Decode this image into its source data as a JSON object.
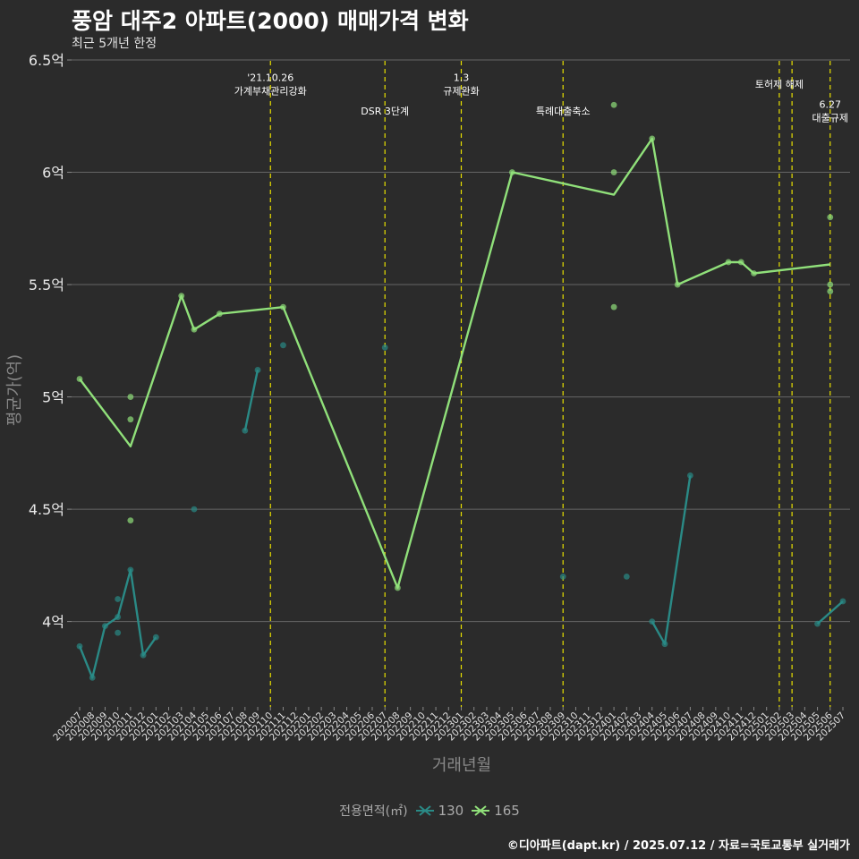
{
  "title": "풍암 대주2 아파트(2000) 매매가격 변화",
  "subtitle": "최근 5개년 한정",
  "caption": "©디아파트(dapt.kr) / 2025.07.12 / 자료=국토교통부 실거래가",
  "legend": {
    "title": "전용면적(㎡)",
    "items": [
      {
        "label": "130",
        "color": "#2a8a86"
      },
      {
        "label": "165",
        "color": "#90e07a"
      }
    ]
  },
  "chart_data": {
    "type": "line",
    "title": "풍암 대주2 아파트(2000) 매매가격 변화",
    "subtitle": "최근 5개년 한정",
    "xlabel": "거래년월",
    "ylabel": "평균가(억)",
    "ylim": [
      3.62,
      6.52
    ],
    "yticks": [
      {
        "value": 4,
        "label": "4억"
      },
      {
        "value": 4.5,
        "label": "4.5억"
      },
      {
        "value": 5,
        "label": "5억"
      },
      {
        "value": 5.5,
        "label": "5.5억"
      },
      {
        "value": 6,
        "label": "6억"
      },
      {
        "value": 6.5,
        "label": "6.5억"
      }
    ],
    "categories": [
      "202007",
      "202008",
      "202009",
      "202010",
      "202011",
      "202012",
      "202101",
      "202102",
      "202103",
      "202104",
      "202105",
      "202106",
      "202107",
      "202108",
      "202109",
      "202110",
      "202111",
      "202112",
      "202201",
      "202202",
      "202203",
      "202204",
      "202205",
      "202206",
      "202207",
      "202208",
      "202209",
      "202210",
      "202211",
      "202212",
      "202301",
      "202302",
      "202303",
      "202304",
      "202305",
      "202306",
      "202307",
      "202308",
      "202309",
      "202310",
      "202311",
      "202312",
      "202401",
      "202402",
      "202403",
      "202404",
      "202405",
      "202406",
      "202407",
      "202408",
      "202409",
      "202410",
      "202411",
      "202412",
      "202501",
      "202502",
      "202503",
      "202504",
      "202505",
      "202506",
      "202507"
    ],
    "grid": true,
    "legend_position": "bottom",
    "series": [
      {
        "name": "130",
        "color": "#2a8a86",
        "segments": [
          [
            [
              "202007",
              3.89
            ],
            [
              "202008",
              3.75
            ],
            [
              "202009",
              3.98
            ],
            [
              "202010",
              4.02
            ],
            [
              "202011",
              4.23
            ],
            [
              "202012",
              3.85
            ],
            [
              "202101",
              3.93
            ]
          ],
          [
            [
              "202108",
              4.85
            ],
            [
              "202109",
              5.12
            ]
          ],
          [
            [
              "202404",
              4.0
            ],
            [
              "202405",
              3.9
            ],
            [
              "202407",
              4.65
            ]
          ],
          [
            [
              "202505",
              3.99
            ],
            [
              "202507",
              4.09
            ]
          ]
        ],
        "points": [
          [
            "202007",
            3.89
          ],
          [
            "202008",
            3.75
          ],
          [
            "202009",
            3.98
          ],
          [
            "202010",
            4.02
          ],
          [
            "202010",
            4.1
          ],
          [
            "202010",
            3.95
          ],
          [
            "202011",
            4.23
          ],
          [
            "202012",
            3.85
          ],
          [
            "202101",
            3.93
          ],
          [
            "202104",
            4.5
          ],
          [
            "202108",
            4.85
          ],
          [
            "202109",
            5.12
          ],
          [
            "202111",
            5.23
          ],
          [
            "202207",
            5.22
          ],
          [
            "202309",
            4.2
          ],
          [
            "202402",
            4.2
          ],
          [
            "202404",
            4.0
          ],
          [
            "202405",
            3.9
          ],
          [
            "202407",
            4.65
          ],
          [
            "202505",
            3.99
          ],
          [
            "202507",
            4.09
          ]
        ]
      },
      {
        "name": "165",
        "color": "#90e07a",
        "segments": [
          [
            [
              "202007",
              5.08
            ],
            [
              "202011",
              4.78
            ],
            [
              "202103",
              5.45
            ],
            [
              "202104",
              5.3
            ],
            [
              "202106",
              5.37
            ],
            [
              "202111",
              5.4
            ],
            [
              "202208",
              4.15
            ],
            [
              "202305",
              6.0
            ],
            [
              "202401",
              5.9
            ],
            [
              "202404",
              6.15
            ],
            [
              "202406",
              5.5
            ],
            [
              "202410",
              5.6
            ],
            [
              "202411",
              5.6
            ],
            [
              "202412",
              5.55
            ],
            [
              "202506",
              5.59
            ]
          ]
        ],
        "points": [
          [
            "202007",
            5.08
          ],
          [
            "202011",
            5.0
          ],
          [
            "202011",
            4.9
          ],
          [
            "202011",
            4.45
          ],
          [
            "202103",
            5.45
          ],
          [
            "202104",
            5.3
          ],
          [
            "202106",
            5.37
          ],
          [
            "202111",
            5.4
          ],
          [
            "202208",
            4.15
          ],
          [
            "202305",
            6.0
          ],
          [
            "202401",
            6.3
          ],
          [
            "202401",
            6.0
          ],
          [
            "202401",
            5.4
          ],
          [
            "202404",
            6.15
          ],
          [
            "202406",
            5.5
          ],
          [
            "202410",
            5.6
          ],
          [
            "202411",
            5.6
          ],
          [
            "202412",
            5.55
          ],
          [
            "202506",
            5.8
          ],
          [
            "202506",
            5.5
          ],
          [
            "202506",
            5.47
          ]
        ]
      }
    ],
    "annotations": [
      {
        "x": "202110",
        "lines": [
          "'21.10.26",
          "가계부채관리강화"
        ],
        "y": 6.45
      },
      {
        "x": "202207",
        "lines": [
          "DSR 3단계"
        ],
        "y": 6.3
      },
      {
        "x": "202301",
        "lines": [
          "1.3",
          "규제완화"
        ],
        "y": 6.45
      },
      {
        "x": "202309",
        "lines": [
          "특례대출축소"
        ],
        "y": 6.3
      },
      {
        "x": "202502",
        "lines": [
          "토허제 해제"
        ],
        "y": 6.42
      },
      {
        "x": "202503",
        "lines": [],
        "y": 6.42
      },
      {
        "x": "202506",
        "lines": [
          "6.27",
          "대출규제"
        ],
        "y": 6.33
      }
    ]
  }
}
